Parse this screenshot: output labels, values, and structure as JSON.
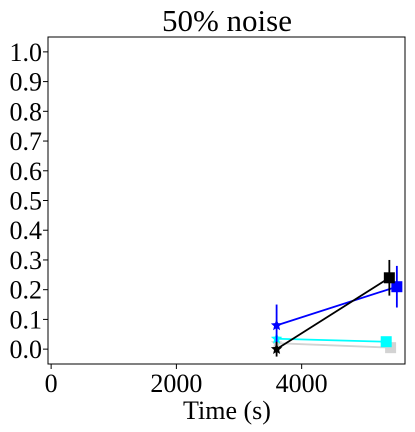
{
  "chart_data": {
    "type": "line",
    "title": "50% noise",
    "xlabel": "Time (s)",
    "ylabel": "",
    "xlim": [
      -50,
      5650
    ],
    "ylim": [
      -0.05,
      1.05
    ],
    "xticks": [
      0,
      2000,
      4000
    ],
    "xtick_labels": [
      "0",
      "2000",
      "4000"
    ],
    "yticks": [
      0.0,
      0.1,
      0.2,
      0.3,
      0.4,
      0.5,
      0.6,
      0.7,
      0.8,
      0.9,
      1.0
    ],
    "ytick_labels": [
      "0.0",
      "0.1",
      "0.2",
      "0.3",
      "0.4",
      "0.5",
      "0.6",
      "0.7",
      "0.8",
      "0.9",
      "1.0"
    ],
    "grid": false,
    "legend": "none",
    "series": [
      {
        "color": "#0000ff",
        "points": [
          {
            "x": 3600,
            "y": 0.08,
            "err": 0.07,
            "marker": "star"
          },
          {
            "x": 5520,
            "y": 0.21,
            "err": 0.07,
            "marker": "square"
          }
        ]
      },
      {
        "color": "#000000",
        "points": [
          {
            "x": 3600,
            "y": 0.0,
            "err": 0.025,
            "marker": "star"
          },
          {
            "x": 5400,
            "y": 0.24,
            "err": 0.06,
            "marker": "square"
          }
        ]
      },
      {
        "color": "#00ffff",
        "points": [
          {
            "x": 3600,
            "y": 0.035,
            "err": 0.015,
            "marker": "star"
          },
          {
            "x": 5350,
            "y": 0.025,
            "err": 0.0,
            "marker": "square"
          }
        ]
      },
      {
        "color": "#d3d3d3",
        "points": [
          {
            "x": 3600,
            "y": 0.02,
            "err": 0.0,
            "marker": "star"
          },
          {
            "x": 5420,
            "y": 0.005,
            "err": 0.0,
            "marker": "square"
          }
        ]
      }
    ]
  }
}
